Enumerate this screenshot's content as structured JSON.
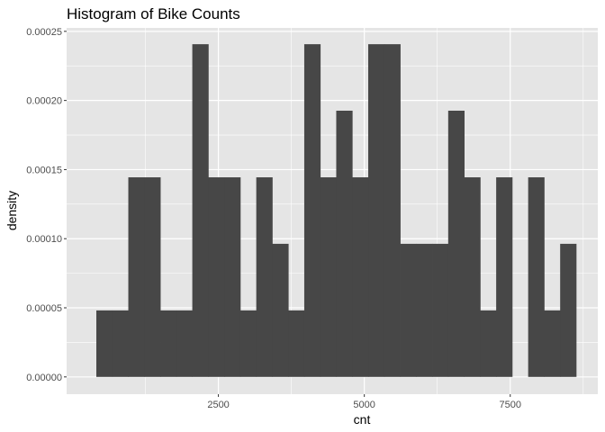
{
  "chart_data": {
    "type": "bar",
    "title": "Histogram of Bike Counts",
    "xlabel": "cnt",
    "ylabel": "density",
    "xlim": [
      -100,
      9000
    ],
    "ylim": [
      -1.25e-05,
      0.0002525
    ],
    "x_ticks": [
      2500,
      5000,
      7500
    ],
    "x_tick_labels": [
      "2500",
      "5000",
      "7500"
    ],
    "y_ticks": [
      0,
      5e-05,
      0.0001,
      0.00015,
      0.0002,
      0.00025
    ],
    "y_tick_labels": [
      "0.00000",
      "0.00005",
      "0.00010",
      "0.00015",
      "0.00020",
      "0.00025"
    ],
    "grid": true,
    "bin_width": 274,
    "bins": [
      {
        "x0": 409,
        "x1": 683,
        "density": 4.81e-05
      },
      {
        "x0": 683,
        "x1": 957,
        "density": 4.81e-05
      },
      {
        "x0": 957,
        "x1": 1231,
        "density": 0.0001444
      },
      {
        "x0": 1231,
        "x1": 1505,
        "density": 0.0001444
      },
      {
        "x0": 1505,
        "x1": 1779,
        "density": 4.81e-05
      },
      {
        "x0": 1779,
        "x1": 2053,
        "density": 4.81e-05
      },
      {
        "x0": 2053,
        "x1": 2327,
        "density": 0.0002407
      },
      {
        "x0": 2327,
        "x1": 2601,
        "density": 0.0001444
      },
      {
        "x0": 2601,
        "x1": 2875,
        "density": 0.0001444
      },
      {
        "x0": 2875,
        "x1": 3149,
        "density": 4.81e-05
      },
      {
        "x0": 3149,
        "x1": 3423,
        "density": 0.0001444
      },
      {
        "x0": 3423,
        "x1": 3697,
        "density": 9.63e-05
      },
      {
        "x0": 3697,
        "x1": 3971,
        "density": 4.81e-05
      },
      {
        "x0": 3971,
        "x1": 4245,
        "density": 0.0002407
      },
      {
        "x0": 4245,
        "x1": 4519,
        "density": 0.0001444
      },
      {
        "x0": 4519,
        "x1": 4793,
        "density": 0.0001926
      },
      {
        "x0": 4793,
        "x1": 5067,
        "density": 0.0001444
      },
      {
        "x0": 5067,
        "x1": 5341,
        "density": 0.0002407
      },
      {
        "x0": 5341,
        "x1": 5615,
        "density": 0.0002407
      },
      {
        "x0": 5615,
        "x1": 5889,
        "density": 9.63e-05
      },
      {
        "x0": 5889,
        "x1": 6163,
        "density": 9.63e-05
      },
      {
        "x0": 6163,
        "x1": 6437,
        "density": 9.63e-05
      },
      {
        "x0": 6437,
        "x1": 6711,
        "density": 0.0001926
      },
      {
        "x0": 6711,
        "x1": 6985,
        "density": 0.0001444
      },
      {
        "x0": 6985,
        "x1": 7259,
        "density": 4.81e-05
      },
      {
        "x0": 7259,
        "x1": 7533,
        "density": 0.0001444
      },
      {
        "x0": 7533,
        "x1": 7807,
        "density": 0
      },
      {
        "x0": 7807,
        "x1": 8081,
        "density": 0.0001444
      },
      {
        "x0": 8081,
        "x1": 8355,
        "density": 4.81e-05
      },
      {
        "x0": 8355,
        "x1": 8629,
        "density": 9.63e-05
      }
    ],
    "colors": {
      "panel_background": "#e5e5e5",
      "grid_major": "#ffffff",
      "bar_fill": "#474747",
      "tick_text": "#4d4d4d",
      "tick_mark": "#333333"
    }
  }
}
